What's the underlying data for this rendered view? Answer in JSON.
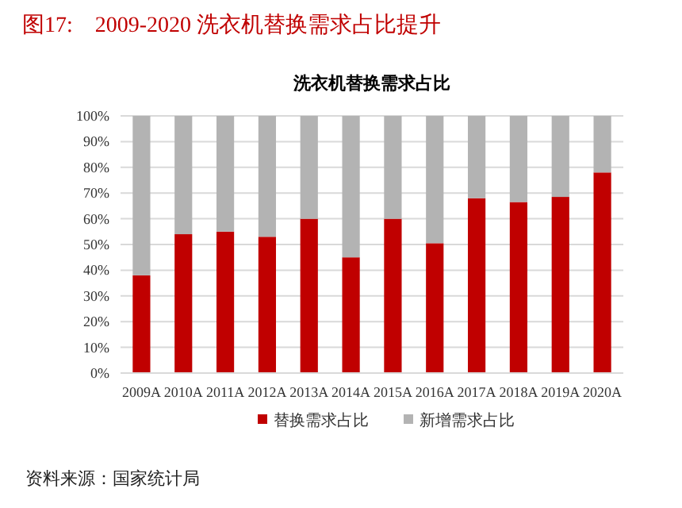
{
  "chart_data": {
    "type": "bar",
    "title": "图17:　2009-2020 洗衣机替换需求占比提升",
    "subtitle": "洗衣机替换需求占比",
    "categories": [
      "2009A",
      "2010A",
      "2011A",
      "2012A",
      "2013A",
      "2014A",
      "2015A",
      "2016A",
      "2017A",
      "2018A",
      "2019A",
      "2020A"
    ],
    "series": [
      {
        "name": "替换需求占比",
        "color": "#c00000",
        "values": [
          38,
          54,
          55,
          53,
          60,
          45,
          60,
          50.5,
          68,
          66.5,
          68.5,
          78
        ]
      },
      {
        "name": "新增需求占比",
        "color": "#b3b3b3",
        "values": [
          62,
          46,
          45,
          47,
          40,
          55,
          40,
          49.5,
          32,
          33.5,
          31.5,
          22
        ]
      }
    ],
    "stacked": true,
    "ylim": [
      0,
      100
    ],
    "yticks": [
      {
        "value": 0,
        "label": "0%"
      },
      {
        "value": 10,
        "label": "10%"
      },
      {
        "value": 20,
        "label": "20%"
      },
      {
        "value": 30,
        "label": "30%"
      },
      {
        "value": 40,
        "label": "40%"
      },
      {
        "value": 50,
        "label": "50%"
      },
      {
        "value": 60,
        "label": "60%"
      },
      {
        "value": 70,
        "label": "70%"
      },
      {
        "value": 80,
        "label": "80%"
      },
      {
        "value": 90,
        "label": "90%"
      },
      {
        "value": 100,
        "label": "100%"
      }
    ],
    "grid": "y",
    "legend": "bottom",
    "annotations": [
      "资料来源：国家统计局"
    ]
  }
}
